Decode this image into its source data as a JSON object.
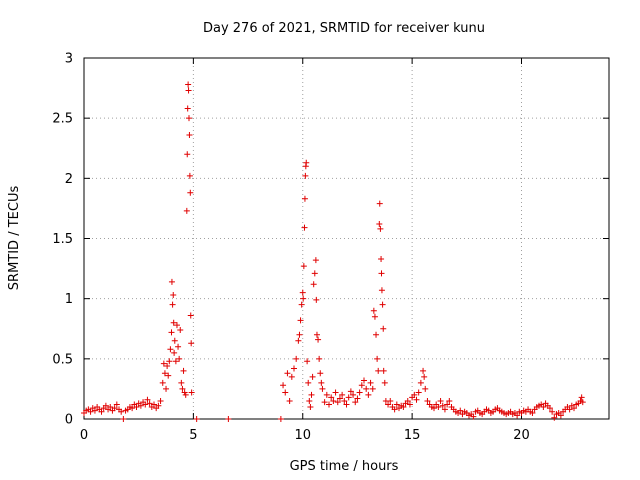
{
  "chart_data": {
    "type": "scatter",
    "title": "Day 276 of 2021, SRMTID for receiver kunu",
    "xlabel": "GPS time / hours",
    "ylabel": "SRMTID / TECUs",
    "xlim": [
      0,
      24
    ],
    "ylim": [
      0,
      3
    ],
    "xticks": [
      0,
      5,
      10,
      15,
      20
    ],
    "xtick_labels": [
      "0",
      "5",
      "10",
      "15",
      "20"
    ],
    "yticks": [
      0,
      0.5,
      1,
      1.5,
      2,
      2.5,
      3
    ],
    "ytick_labels": [
      "0",
      "0.5",
      "1",
      "1.5",
      "2",
      "2.5",
      "3"
    ],
    "grid": true,
    "marker": "+",
    "color": "#e00000",
    "series": [
      {
        "name": "SRMTID",
        "points": [
          [
            0.0,
            0.05
          ],
          [
            0.1,
            0.07
          ],
          [
            0.2,
            0.08
          ],
          [
            0.3,
            0.06
          ],
          [
            0.4,
            0.09
          ],
          [
            0.5,
            0.07
          ],
          [
            0.6,
            0.1
          ],
          [
            0.7,
            0.08
          ],
          [
            0.8,
            0.06
          ],
          [
            0.9,
            0.09
          ],
          [
            1.0,
            0.11
          ],
          [
            1.1,
            0.08
          ],
          [
            1.2,
            0.1
          ],
          [
            1.3,
            0.07
          ],
          [
            1.4,
            0.09
          ],
          [
            1.5,
            0.12
          ],
          [
            1.6,
            0.08
          ],
          [
            1.7,
            0.06
          ],
          [
            1.8,
            0.0
          ],
          [
            1.9,
            0.07
          ],
          [
            2.0,
            0.08
          ],
          [
            2.1,
            0.1
          ],
          [
            2.2,
            0.09
          ],
          [
            2.3,
            0.12
          ],
          [
            2.4,
            0.1
          ],
          [
            2.5,
            0.13
          ],
          [
            2.6,
            0.11
          ],
          [
            2.7,
            0.14
          ],
          [
            2.8,
            0.12
          ],
          [
            2.9,
            0.16
          ],
          [
            3.0,
            0.13
          ],
          [
            3.1,
            0.1
          ],
          [
            3.2,
            0.12
          ],
          [
            3.3,
            0.09
          ],
          [
            3.4,
            0.11
          ],
          [
            3.5,
            0.15
          ],
          [
            3.6,
            0.3
          ],
          [
            3.65,
            0.46
          ],
          [
            3.7,
            0.38
          ],
          [
            3.75,
            0.25
          ],
          [
            3.8,
            0.44
          ],
          [
            3.85,
            0.36
          ],
          [
            3.9,
            0.48
          ],
          [
            3.95,
            0.58
          ],
          [
            4.0,
            0.72
          ],
          [
            4.02,
            1.14
          ],
          [
            4.05,
            0.95
          ],
          [
            4.08,
            1.03
          ],
          [
            4.1,
            0.8
          ],
          [
            4.12,
            0.55
          ],
          [
            4.15,
            0.65
          ],
          [
            4.2,
            0.48
          ],
          [
            4.25,
            0.78
          ],
          [
            4.3,
            0.6
          ],
          [
            4.35,
            0.5
          ],
          [
            4.4,
            0.74
          ],
          [
            4.45,
            0.3
          ],
          [
            4.5,
            0.25
          ],
          [
            4.55,
            0.4
          ],
          [
            4.6,
            0.22
          ],
          [
            4.65,
            0.2
          ],
          [
            4.7,
            1.73
          ],
          [
            4.72,
            2.2
          ],
          [
            4.74,
            2.58
          ],
          [
            4.76,
            2.78
          ],
          [
            4.78,
            2.73
          ],
          [
            4.8,
            2.5
          ],
          [
            4.82,
            2.36
          ],
          [
            4.84,
            2.02
          ],
          [
            4.86,
            1.88
          ],
          [
            4.88,
            0.86
          ],
          [
            4.9,
            0.63
          ],
          [
            4.92,
            0.22
          ],
          [
            5.15,
            0.0
          ],
          [
            6.6,
            0.0
          ],
          [
            9.0,
            0.0
          ],
          [
            9.1,
            0.28
          ],
          [
            9.2,
            0.22
          ],
          [
            9.3,
            0.38
          ],
          [
            9.4,
            0.15
          ],
          [
            9.5,
            0.35
          ],
          [
            9.6,
            0.42
          ],
          [
            9.7,
            0.5
          ],
          [
            9.8,
            0.65
          ],
          [
            9.85,
            0.7
          ],
          [
            9.9,
            0.82
          ],
          [
            9.95,
            0.95
          ],
          [
            10.0,
            1.05
          ],
          [
            10.02,
            1.0
          ],
          [
            10.05,
            1.27
          ],
          [
            10.08,
            1.59
          ],
          [
            10.1,
            1.83
          ],
          [
            10.12,
            2.02
          ],
          [
            10.14,
            2.1
          ],
          [
            10.16,
            2.13
          ],
          [
            10.2,
            0.48
          ],
          [
            10.25,
            0.3
          ],
          [
            10.3,
            0.15
          ],
          [
            10.35,
            0.1
          ],
          [
            10.4,
            0.2
          ],
          [
            10.45,
            0.35
          ],
          [
            10.5,
            1.12
          ],
          [
            10.55,
            1.21
          ],
          [
            10.6,
            1.32
          ],
          [
            10.62,
            0.99
          ],
          [
            10.65,
            0.7
          ],
          [
            10.7,
            0.66
          ],
          [
            10.75,
            0.5
          ],
          [
            10.8,
            0.38
          ],
          [
            10.85,
            0.3
          ],
          [
            10.9,
            0.25
          ],
          [
            11.0,
            0.14
          ],
          [
            11.1,
            0.2
          ],
          [
            11.2,
            0.12
          ],
          [
            11.3,
            0.18
          ],
          [
            11.4,
            0.15
          ],
          [
            11.5,
            0.22
          ],
          [
            11.6,
            0.14
          ],
          [
            11.7,
            0.17
          ],
          [
            11.8,
            0.2
          ],
          [
            11.9,
            0.15
          ],
          [
            12.0,
            0.12
          ],
          [
            12.1,
            0.18
          ],
          [
            12.2,
            0.23
          ],
          [
            12.3,
            0.2
          ],
          [
            12.4,
            0.14
          ],
          [
            12.5,
            0.17
          ],
          [
            12.6,
            0.22
          ],
          [
            12.7,
            0.28
          ],
          [
            12.8,
            0.32
          ],
          [
            12.9,
            0.25
          ],
          [
            13.0,
            0.2
          ],
          [
            13.1,
            0.3
          ],
          [
            13.2,
            0.25
          ],
          [
            13.25,
            0.9
          ],
          [
            13.3,
            0.85
          ],
          [
            13.35,
            0.7
          ],
          [
            13.4,
            0.5
          ],
          [
            13.45,
            0.4
          ],
          [
            13.5,
            1.62
          ],
          [
            13.52,
            1.79
          ],
          [
            13.55,
            1.58
          ],
          [
            13.58,
            1.33
          ],
          [
            13.6,
            1.21
          ],
          [
            13.62,
            1.07
          ],
          [
            13.65,
            0.95
          ],
          [
            13.68,
            0.75
          ],
          [
            13.7,
            0.4
          ],
          [
            13.75,
            0.3
          ],
          [
            13.8,
            0.15
          ],
          [
            13.9,
            0.12
          ],
          [
            14.0,
            0.15
          ],
          [
            14.1,
            0.1
          ],
          [
            14.2,
            0.08
          ],
          [
            14.3,
            0.12
          ],
          [
            14.4,
            0.09
          ],
          [
            14.5,
            0.11
          ],
          [
            14.6,
            0.1
          ],
          [
            14.7,
            0.13
          ],
          [
            14.8,
            0.15
          ],
          [
            14.9,
            0.12
          ],
          [
            15.0,
            0.18
          ],
          [
            15.1,
            0.2
          ],
          [
            15.2,
            0.16
          ],
          [
            15.3,
            0.22
          ],
          [
            15.4,
            0.3
          ],
          [
            15.5,
            0.4
          ],
          [
            15.55,
            0.35
          ],
          [
            15.6,
            0.25
          ],
          [
            15.7,
            0.15
          ],
          [
            15.8,
            0.12
          ],
          [
            15.9,
            0.1
          ],
          [
            16.0,
            0.09
          ],
          [
            16.1,
            0.12
          ],
          [
            16.2,
            0.1
          ],
          [
            16.3,
            0.15
          ],
          [
            16.4,
            0.11
          ],
          [
            16.5,
            0.08
          ],
          [
            16.6,
            0.12
          ],
          [
            16.7,
            0.15
          ],
          [
            16.8,
            0.1
          ],
          [
            16.9,
            0.08
          ],
          [
            17.0,
            0.06
          ],
          [
            17.1,
            0.05
          ],
          [
            17.2,
            0.07
          ],
          [
            17.3,
            0.04
          ],
          [
            17.4,
            0.06
          ],
          [
            17.5,
            0.05
          ],
          [
            17.6,
            0.03
          ],
          [
            17.7,
            0.04
          ],
          [
            17.8,
            0.02
          ],
          [
            17.9,
            0.06
          ],
          [
            18.0,
            0.07
          ],
          [
            18.1,
            0.05
          ],
          [
            18.2,
            0.04
          ],
          [
            18.3,
            0.06
          ],
          [
            18.4,
            0.08
          ],
          [
            18.5,
            0.07
          ],
          [
            18.6,
            0.05
          ],
          [
            18.7,
            0.06
          ],
          [
            18.8,
            0.08
          ],
          [
            18.9,
            0.09
          ],
          [
            19.0,
            0.07
          ],
          [
            19.1,
            0.06
          ],
          [
            19.2,
            0.05
          ],
          [
            19.3,
            0.04
          ],
          [
            19.4,
            0.05
          ],
          [
            19.5,
            0.06
          ],
          [
            19.6,
            0.04
          ],
          [
            19.7,
            0.05
          ],
          [
            19.8,
            0.03
          ],
          [
            19.9,
            0.06
          ],
          [
            20.0,
            0.05
          ],
          [
            20.1,
            0.07
          ],
          [
            20.2,
            0.06
          ],
          [
            20.3,
            0.08
          ],
          [
            20.4,
            0.06
          ],
          [
            20.5,
            0.05
          ],
          [
            20.6,
            0.08
          ],
          [
            20.7,
            0.1
          ],
          [
            20.8,
            0.11
          ],
          [
            20.9,
            0.12
          ],
          [
            21.0,
            0.1
          ],
          [
            21.1,
            0.13
          ],
          [
            21.2,
            0.11
          ],
          [
            21.3,
            0.09
          ],
          [
            21.4,
            0.06
          ],
          [
            21.5,
            0.01
          ],
          [
            21.6,
            0.04
          ],
          [
            21.7,
            0.05
          ],
          [
            21.8,
            0.03
          ],
          [
            21.9,
            0.06
          ],
          [
            22.0,
            0.08
          ],
          [
            22.1,
            0.1
          ],
          [
            22.2,
            0.08
          ],
          [
            22.3,
            0.11
          ],
          [
            22.4,
            0.09
          ],
          [
            22.5,
            0.12
          ],
          [
            22.6,
            0.13
          ],
          [
            22.7,
            0.15
          ],
          [
            22.75,
            0.18
          ],
          [
            22.8,
            0.14
          ]
        ]
      }
    ]
  }
}
